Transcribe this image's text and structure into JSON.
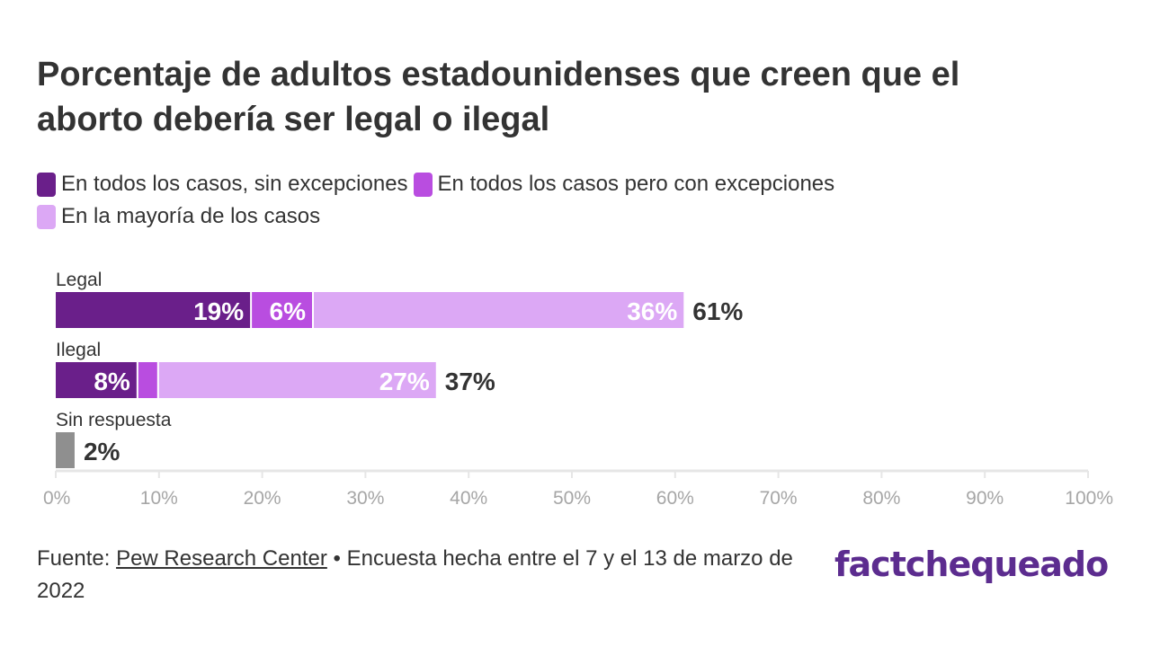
{
  "title": "Porcentaje de adultos estadounidenses que creen que el aborto debería ser legal o ilegal",
  "legend": [
    {
      "label": "En todos los casos, sin excepciones",
      "color": "#6a1f8a"
    },
    {
      "label": "En todos los casos pero con excepciones",
      "color": "#b94de0"
    },
    {
      "label": "En la mayoría de los casos",
      "color": "#dca8f5"
    }
  ],
  "chart_data": {
    "type": "bar",
    "orientation": "horizontal",
    "stacked": true,
    "categories": [
      "Legal",
      "Ilegal",
      "Sin respuesta"
    ],
    "series": [
      {
        "name": "En todos los casos, sin excepciones",
        "values": [
          19,
          8,
          null
        ],
        "labels": [
          "19%",
          "8%",
          ""
        ],
        "color": "#6a1f8a"
      },
      {
        "name": "En todos los casos pero con excepciones",
        "values": [
          6,
          2,
          null
        ],
        "labels": [
          "6%",
          "",
          ""
        ],
        "color": "#b94de0"
      },
      {
        "name": "En la mayoría de los casos",
        "values": [
          36,
          27,
          null
        ],
        "labels": [
          "36%",
          "27%",
          ""
        ],
        "color": "#dca8f5"
      },
      {
        "name": "Sin respuesta",
        "values": [
          null,
          null,
          2
        ],
        "labels": [
          "",
          "",
          ""
        ],
        "color": "#8f8f8f"
      }
    ],
    "totals": [
      "61%",
      "37%",
      "2%"
    ],
    "xlim": [
      0,
      100
    ],
    "xticks": [
      "0%",
      "10%",
      "20%",
      "30%",
      "40%",
      "50%",
      "60%",
      "70%",
      "80%",
      "90%",
      "100%"
    ],
    "grid": false
  },
  "footer": {
    "prefix": "Fuente: ",
    "source": "Pew Research Center",
    "suffix": " • Encuesta hecha entre el 7 y el 13 de marzo de 2022"
  },
  "logo": {
    "text": "factchequeado"
  }
}
